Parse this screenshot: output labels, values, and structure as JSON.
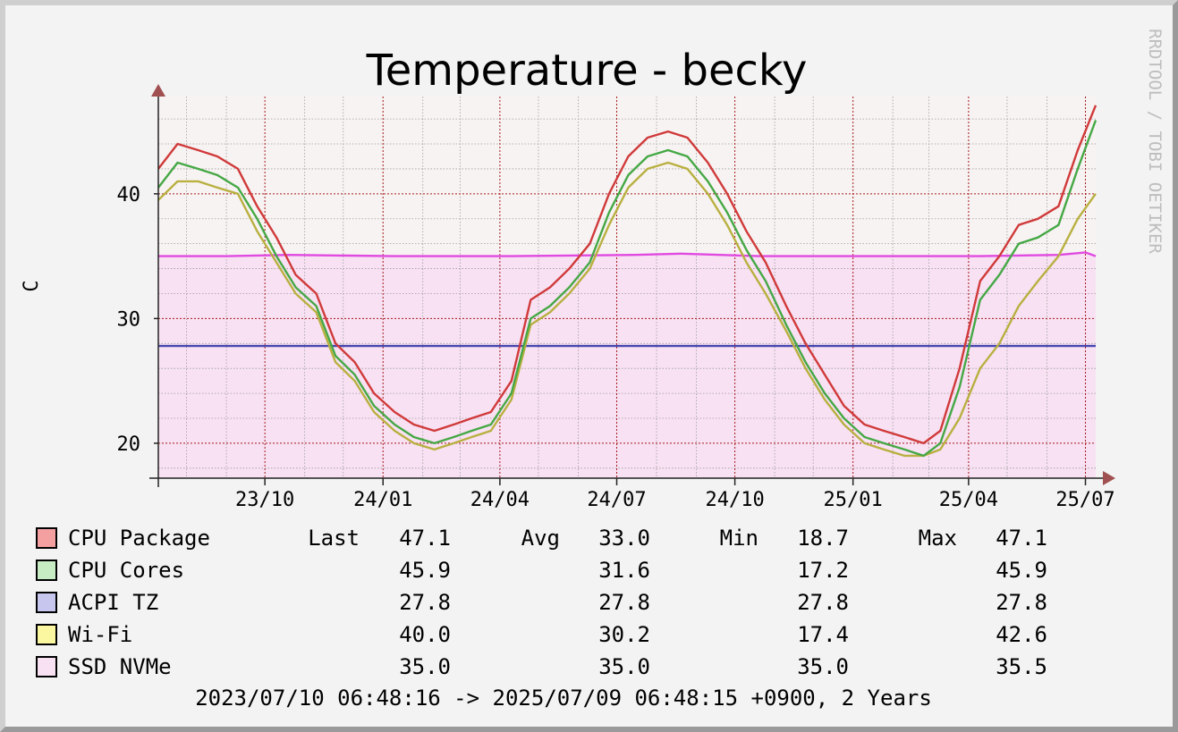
{
  "chart_data": {
    "type": "line",
    "title": "Temperature - becky",
    "ylabel": "C",
    "watermark": "RRDTOOL / TOBI OETIKER",
    "ylim": [
      17.2,
      47.8
    ],
    "y_ticks": [
      20,
      30,
      40
    ],
    "x_ticks": [
      "23/10",
      "24/01",
      "24/04",
      "24/07",
      "24/10",
      "25/01",
      "25/04",
      "25/07"
    ],
    "x_tick_dates": [
      "2023-10-01",
      "2024-01-01",
      "2024-04-01",
      "2024-07-01",
      "2024-10-01",
      "2025-01-01",
      "2025-04-01",
      "2025-07-01"
    ],
    "x_start": "2023-07-10",
    "x_end": "2025-07-09",
    "grid": true,
    "colors": {
      "plot_bg": "#f8f3f3",
      "grid_major": "#a11a1a",
      "grid_minor": "#9c9c9c",
      "axis": "#222222",
      "arrow": "#a05050",
      "ssd_area": "#f8e1f3"
    },
    "series": [
      {
        "name": "CPU Package",
        "color": "#d03a3a",
        "swatch": "#f5a0a0",
        "x": [
          "2023-07-10",
          "2023-07-25",
          "2023-08-10",
          "2023-08-25",
          "2023-09-10",
          "2023-09-25",
          "2023-10-10",
          "2023-10-25",
          "2023-11-10",
          "2023-11-25",
          "2023-12-10",
          "2023-12-25",
          "2024-01-10",
          "2024-01-25",
          "2024-02-10",
          "2024-02-25",
          "2024-03-10",
          "2024-03-25",
          "2024-04-10",
          "2024-04-25",
          "2024-05-10",
          "2024-05-25",
          "2024-06-10",
          "2024-06-25",
          "2024-07-10",
          "2024-07-25",
          "2024-08-10",
          "2024-08-25",
          "2024-09-10",
          "2024-09-25",
          "2024-10-10",
          "2024-10-25",
          "2024-11-10",
          "2024-11-25",
          "2024-12-10",
          "2024-12-25",
          "2025-01-10",
          "2025-01-25",
          "2025-02-10",
          "2025-02-25",
          "2025-03-10",
          "2025-03-25",
          "2025-04-10",
          "2025-04-25",
          "2025-05-10",
          "2025-05-25",
          "2025-06-10",
          "2025-06-25",
          "2025-07-09"
        ],
        "values": [
          42.0,
          44.0,
          43.5,
          43.0,
          42.0,
          39.0,
          36.5,
          33.5,
          32.0,
          28.0,
          26.5,
          24.0,
          22.5,
          21.5,
          21.0,
          21.5,
          22.0,
          22.5,
          25.0,
          31.5,
          32.5,
          34.0,
          36.0,
          40.0,
          43.0,
          44.5,
          45.0,
          44.5,
          42.5,
          40.0,
          37.0,
          34.5,
          31.0,
          28.0,
          25.5,
          23.0,
          21.5,
          21.0,
          20.5,
          20.0,
          21.0,
          26.0,
          33.0,
          35.0,
          37.5,
          38.0,
          39.0,
          43.5,
          47.1
        ]
      },
      {
        "name": "CPU Cores",
        "color": "#45a845",
        "swatch": "#c7ecc4",
        "x": [
          "2023-07-10",
          "2023-07-25",
          "2023-08-10",
          "2023-08-25",
          "2023-09-10",
          "2023-09-25",
          "2023-10-10",
          "2023-10-25",
          "2023-11-10",
          "2023-11-25",
          "2023-12-10",
          "2023-12-25",
          "2024-01-10",
          "2024-01-25",
          "2024-02-10",
          "2024-02-25",
          "2024-03-10",
          "2024-03-25",
          "2024-04-10",
          "2024-04-25",
          "2024-05-10",
          "2024-05-25",
          "2024-06-10",
          "2024-06-25",
          "2024-07-10",
          "2024-07-25",
          "2024-08-10",
          "2024-08-25",
          "2024-09-10",
          "2024-09-25",
          "2024-10-10",
          "2024-10-25",
          "2024-11-10",
          "2024-11-25",
          "2024-12-10",
          "2024-12-25",
          "2025-01-10",
          "2025-01-25",
          "2025-02-10",
          "2025-02-25",
          "2025-03-10",
          "2025-03-25",
          "2025-04-10",
          "2025-04-25",
          "2025-05-10",
          "2025-05-25",
          "2025-06-10",
          "2025-06-25",
          "2025-07-09"
        ],
        "values": [
          40.5,
          42.5,
          42.0,
          41.5,
          40.5,
          38.0,
          35.0,
          32.5,
          31.0,
          27.0,
          25.5,
          23.0,
          21.5,
          20.5,
          20.0,
          20.5,
          21.0,
          21.5,
          24.0,
          30.0,
          31.0,
          32.5,
          34.5,
          38.5,
          41.5,
          43.0,
          43.5,
          43.0,
          41.0,
          38.5,
          35.5,
          33.0,
          29.5,
          26.5,
          24.0,
          22.0,
          20.5,
          20.0,
          19.5,
          19.0,
          20.0,
          24.5,
          31.5,
          33.5,
          36.0,
          36.5,
          37.5,
          42.0,
          45.9
        ]
      },
      {
        "name": "ACPI TZ",
        "color": "#4646b0",
        "swatch": "#c6c6ee",
        "x": [
          "2023-07-10",
          "2025-07-09"
        ],
        "values": [
          27.8,
          27.8
        ]
      },
      {
        "name": "Wi-Fi",
        "color": "#b8b040",
        "swatch": "#fbf7a0",
        "x": [
          "2023-07-10",
          "2023-07-25",
          "2023-08-10",
          "2023-08-25",
          "2023-09-10",
          "2023-09-25",
          "2023-10-10",
          "2023-10-25",
          "2023-11-10",
          "2023-11-25",
          "2023-12-10",
          "2023-12-25",
          "2024-01-10",
          "2024-01-25",
          "2024-02-10",
          "2024-02-25",
          "2024-03-10",
          "2024-03-25",
          "2024-04-10",
          "2024-04-25",
          "2024-05-10",
          "2024-05-25",
          "2024-06-10",
          "2024-06-25",
          "2024-07-10",
          "2024-07-25",
          "2024-08-10",
          "2024-08-25",
          "2024-09-10",
          "2024-09-25",
          "2024-10-10",
          "2024-10-25",
          "2024-11-10",
          "2024-11-25",
          "2024-12-10",
          "2024-12-25",
          "2025-01-10",
          "2025-01-25",
          "2025-02-10",
          "2025-02-25",
          "2025-03-10",
          "2025-03-25",
          "2025-04-10",
          "2025-04-25",
          "2025-05-10",
          "2025-05-25",
          "2025-06-10",
          "2025-06-25",
          "2025-07-09"
        ],
        "values": [
          39.5,
          41.0,
          41.0,
          40.5,
          40.0,
          37.0,
          34.5,
          32.0,
          30.5,
          26.5,
          25.0,
          22.5,
          21.0,
          20.0,
          19.5,
          20.0,
          20.5,
          21.0,
          23.5,
          29.5,
          30.5,
          32.0,
          34.0,
          37.5,
          40.5,
          42.0,
          42.5,
          42.0,
          40.0,
          37.5,
          34.5,
          32.0,
          29.0,
          26.0,
          23.5,
          21.5,
          20.0,
          19.5,
          19.0,
          19.0,
          19.5,
          22.0,
          26.0,
          28.0,
          31.0,
          33.0,
          35.0,
          38.0,
          40.0
        ]
      },
      {
        "name": "SSD NVMe",
        "color": "#e04ae0",
        "swatch": "#f8e1f3",
        "area": true,
        "x": [
          "2023-07-10",
          "2023-09-01",
          "2023-10-20",
          "2024-01-10",
          "2024-04-10",
          "2024-07-15",
          "2024-08-20",
          "2024-10-20",
          "2025-01-10",
          "2025-04-10",
          "2025-06-10",
          "2025-07-01",
          "2025-07-09"
        ],
        "values": [
          35.0,
          35.0,
          35.1,
          35.0,
          35.0,
          35.1,
          35.2,
          35.0,
          35.0,
          35.0,
          35.1,
          35.3,
          35.0
        ]
      }
    ]
  },
  "legend": {
    "headers": {
      "last": "Last",
      "avg": "Avg",
      "min": "Min",
      "max": "Max"
    },
    "rows": [
      {
        "name": "CPU Package",
        "last": "47.1",
        "avg": "33.0",
        "min": "18.7",
        "max": "47.1"
      },
      {
        "name": "CPU Cores",
        "last": "45.9",
        "avg": "31.6",
        "min": "17.2",
        "max": "45.9"
      },
      {
        "name": "ACPI TZ",
        "last": "27.8",
        "avg": "27.8",
        "min": "27.8",
        "max": "27.8"
      },
      {
        "name": "Wi-Fi",
        "last": "40.0",
        "avg": "30.2",
        "min": "17.4",
        "max": "42.6"
      },
      {
        "name": "SSD NVMe",
        "last": "35.0",
        "avg": "35.0",
        "min": "35.0",
        "max": "35.5"
      }
    ]
  },
  "footer": "2023/07/10 06:48:16 -> 2025/07/09 06:48:15 +0900, 2 Years"
}
